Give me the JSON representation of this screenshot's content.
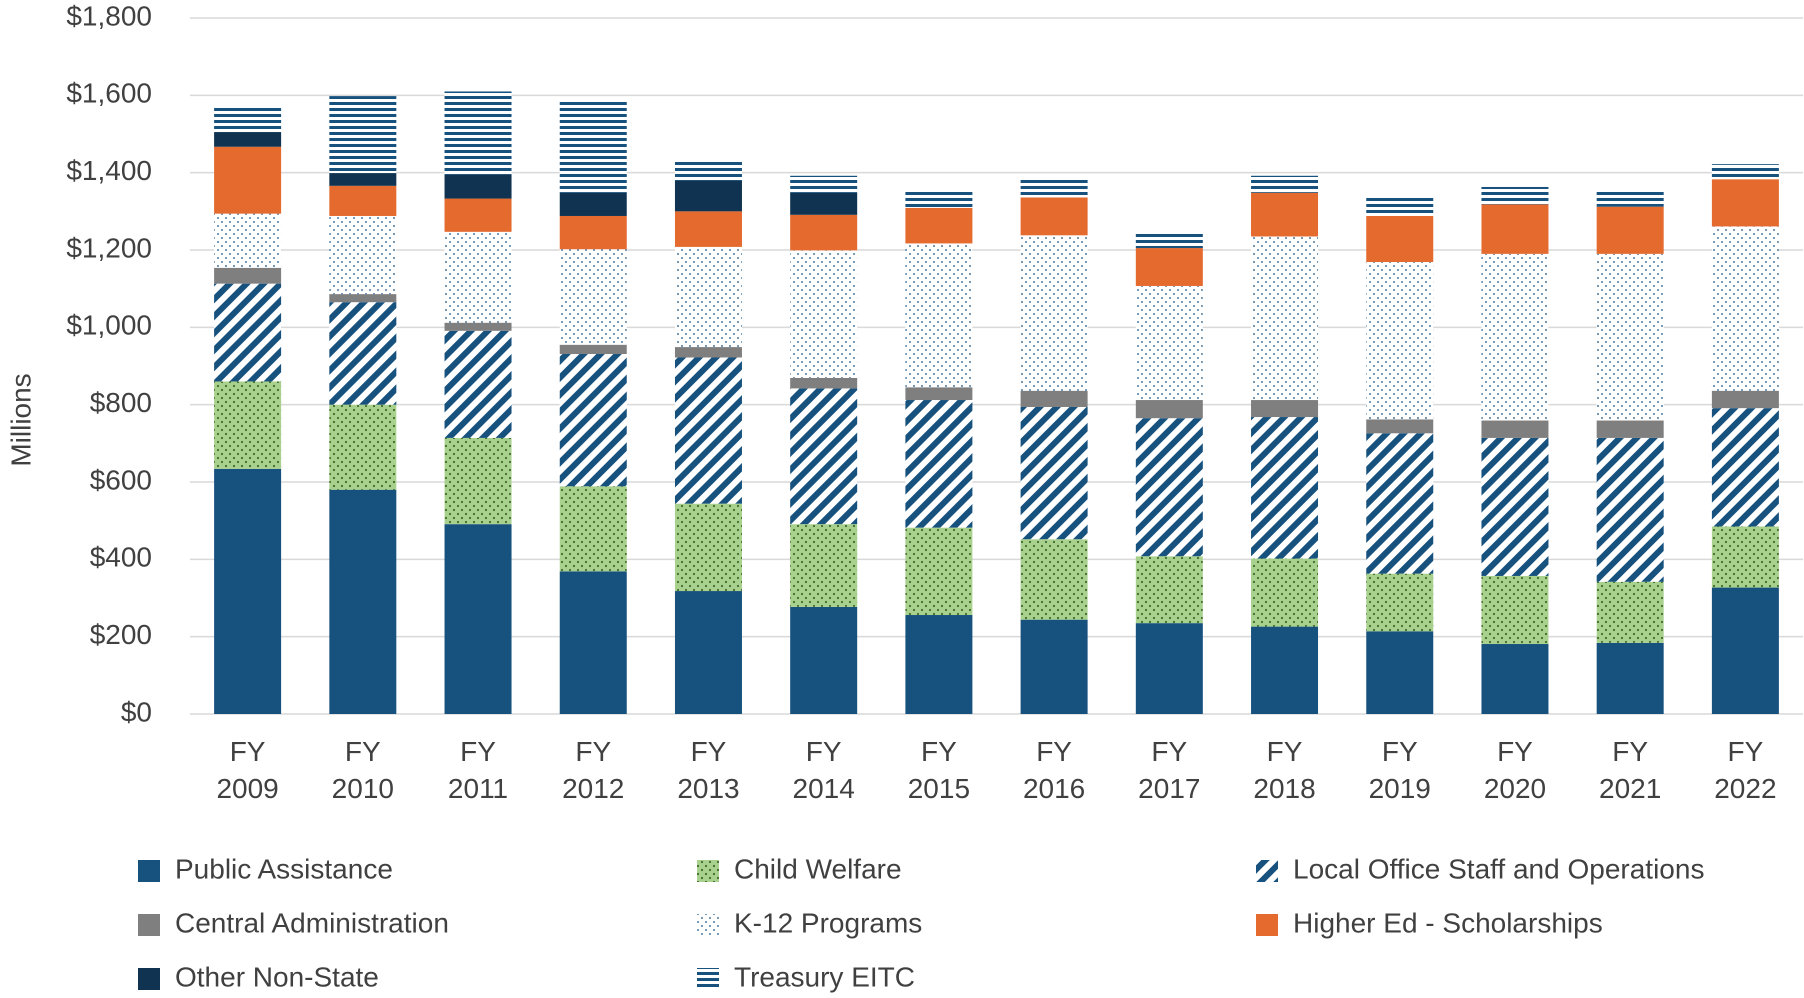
{
  "chart_data": {
    "type": "stacked_bar",
    "y_axis_label": "Millions",
    "categories": [
      "FY 2009",
      "FY 2010",
      "FY 2011",
      "FY 2012",
      "FY 2013",
      "FY 2014",
      "FY 2015",
      "FY 2016",
      "FY 2017",
      "FY 2018",
      "FY 2019",
      "FY 2020",
      "FY 2021",
      "FY 2022"
    ],
    "ylim": [
      0,
      1800
    ],
    "yticks": [
      {
        "value": 0,
        "label": "$0"
      },
      {
        "value": 200,
        "label": "$200"
      },
      {
        "value": 400,
        "label": "$400"
      },
      {
        "value": 600,
        "label": "$600"
      },
      {
        "value": 800,
        "label": "$800"
      },
      {
        "value": 1000,
        "label": "$1,000"
      },
      {
        "value": 1200,
        "label": "$1,200"
      },
      {
        "value": 1400,
        "label": "$1,400"
      },
      {
        "value": 1600,
        "label": "$1,600"
      },
      {
        "value": 1800,
        "label": "$1,800"
      }
    ],
    "grid": true,
    "legend": "bottom",
    "series": [
      {
        "name": "Public Assistance",
        "color": "#17527f",
        "pattern": "solid",
        "values": [
          634,
          580,
          491,
          369,
          318,
          277,
          256,
          244,
          235,
          226,
          214,
          181,
          184,
          327
        ]
      },
      {
        "name": "Child Welfare",
        "color": "#a9d18e",
        "pattern": "dots",
        "values": [
          226,
          220,
          223,
          220,
          226,
          214,
          226,
          208,
          173,
          176,
          149,
          176,
          158,
          158
        ]
      },
      {
        "name": "Local Office Staff and Operations",
        "color": "#17527f",
        "pattern": "diagonal",
        "values": [
          253,
          265,
          277,
          342,
          378,
          351,
          330,
          342,
          357,
          366,
          363,
          357,
          372,
          306
        ]
      },
      {
        "name": "Central Administration",
        "color": "#7f7f7f",
        "pattern": "solid",
        "values": [
          41,
          21,
          21,
          24,
          27,
          27,
          33,
          42,
          47,
          44,
          36,
          45,
          45,
          45
        ]
      },
      {
        "name": "K-12 Programs",
        "color": "#17527f",
        "pattern": "sparse-dots",
        "values": [
          140,
          202,
          235,
          247,
          259,
          330,
          372,
          402,
          295,
          423,
          407,
          431,
          431,
          425
        ]
      },
      {
        "name": "Higher Ed - Scholarships",
        "color": "#e46a2e",
        "pattern": "solid",
        "values": [
          173,
          78,
          86,
          86,
          92,
          92,
          92,
          98,
          98,
          113,
          119,
          128,
          122,
          122
        ]
      },
      {
        "name": "Other Non-State",
        "color": "#0f3350",
        "pattern": "solid",
        "values": [
          38,
          33,
          62,
          60,
          80,
          57,
          0,
          0,
          0,
          0,
          0,
          0,
          0,
          0
        ]
      },
      {
        "name": "Treasury EITC",
        "color": "#17527f",
        "pattern": "horizontal",
        "values": [
          69,
          199,
          215,
          235,
          48,
          44,
          48,
          47,
          42,
          44,
          48,
          45,
          45,
          39
        ]
      }
    ]
  }
}
